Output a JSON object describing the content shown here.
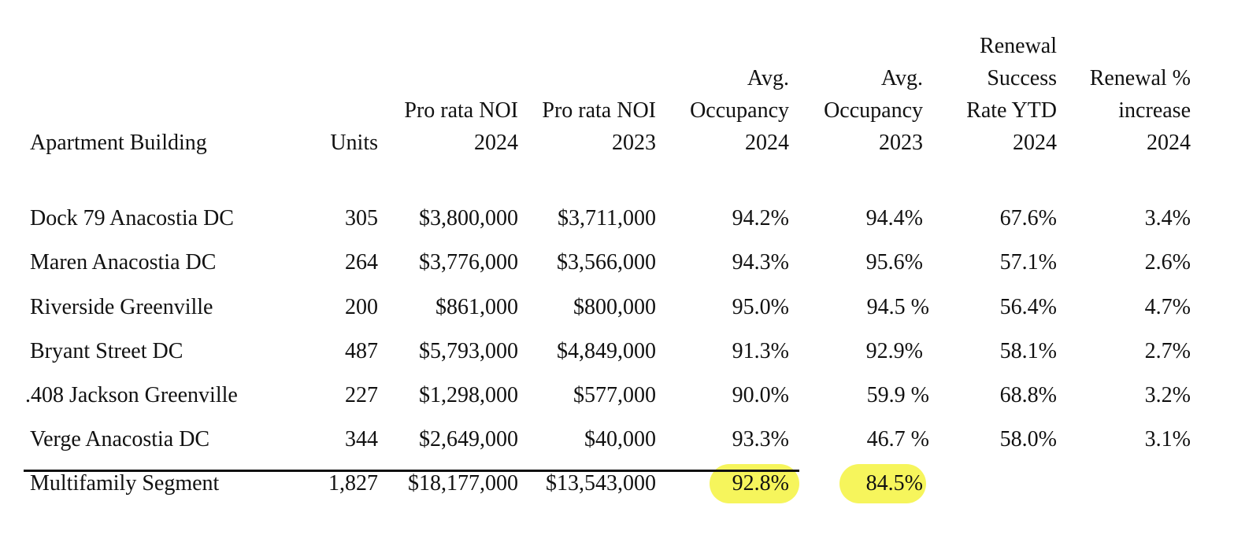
{
  "columns": {
    "building": "Apartment Building",
    "units": "Units",
    "noi2024": [
      "Pro rata NOI",
      "2024"
    ],
    "noi2023": [
      "Pro rata NOI",
      "2023"
    ],
    "occ2024": [
      "Avg.",
      "Occupancy",
      "2024"
    ],
    "occ2023": [
      "Avg.",
      "Occupancy",
      "2023"
    ],
    "renewal_rate": [
      "Renewal",
      "Success",
      "Rate YTD",
      "2024"
    ],
    "renewal_increase": [
      "Renewal %",
      "increase",
      "2024"
    ]
  },
  "rows": [
    {
      "building": "Dock 79 Anacostia DC",
      "units": "305",
      "noi2024": "$3,800,000",
      "noi2023": "$3,711,000",
      "occ2024": "94.2%",
      "occ2023": "94.4%",
      "renewal_rate": "67.6%",
      "renewal_increase": "3.4%"
    },
    {
      "building": "Maren Anacostia DC",
      "units": "264",
      "noi2024": "$3,776,000",
      "noi2023": "$3,566,000",
      "occ2024": "94.3%",
      "occ2023": "95.6%",
      "renewal_rate": "57.1%",
      "renewal_increase": "2.6%"
    },
    {
      "building": "Riverside Greenville",
      "units": "200",
      "noi2024": "$861,000",
      "noi2023": "$800,000",
      "occ2024": "95.0%",
      "occ2023": "94.5 %",
      "renewal_rate": "56.4%",
      "renewal_increase": "4.7%"
    },
    {
      "building": "Bryant Street DC",
      "units": "487",
      "noi2024": "$5,793,000",
      "noi2023": "$4,849,000",
      "occ2024": "91.3%",
      "occ2023": "92.9%",
      "renewal_rate": "58.1%",
      "renewal_increase": "2.7%"
    },
    {
      "building": ".408 Jackson Greenville",
      "units": "227",
      "noi2024": "$1,298,000",
      "noi2023": "$577,000",
      "occ2024": "90.0%",
      "occ2023": "59.9 %",
      "renewal_rate": "68.8%",
      "renewal_increase": "3.2%"
    },
    {
      "building": "Verge Anacostia DC",
      "units": "344",
      "noi2024": "$2,649,000",
      "noi2023": "$40,000",
      "occ2024": "93.3%",
      "occ2023": "46.7 %",
      "renewal_rate": "58.0%",
      "renewal_increase": "3.1%"
    }
  ],
  "total": {
    "building": "Multifamily Segment",
    "units": "1,827",
    "noi2024": "$18,177,000",
    "noi2023": "$13,543,000",
    "occ2024": "92.8%",
    "occ2023": "84.5%"
  },
  "highlight_color": "#f6f55c"
}
